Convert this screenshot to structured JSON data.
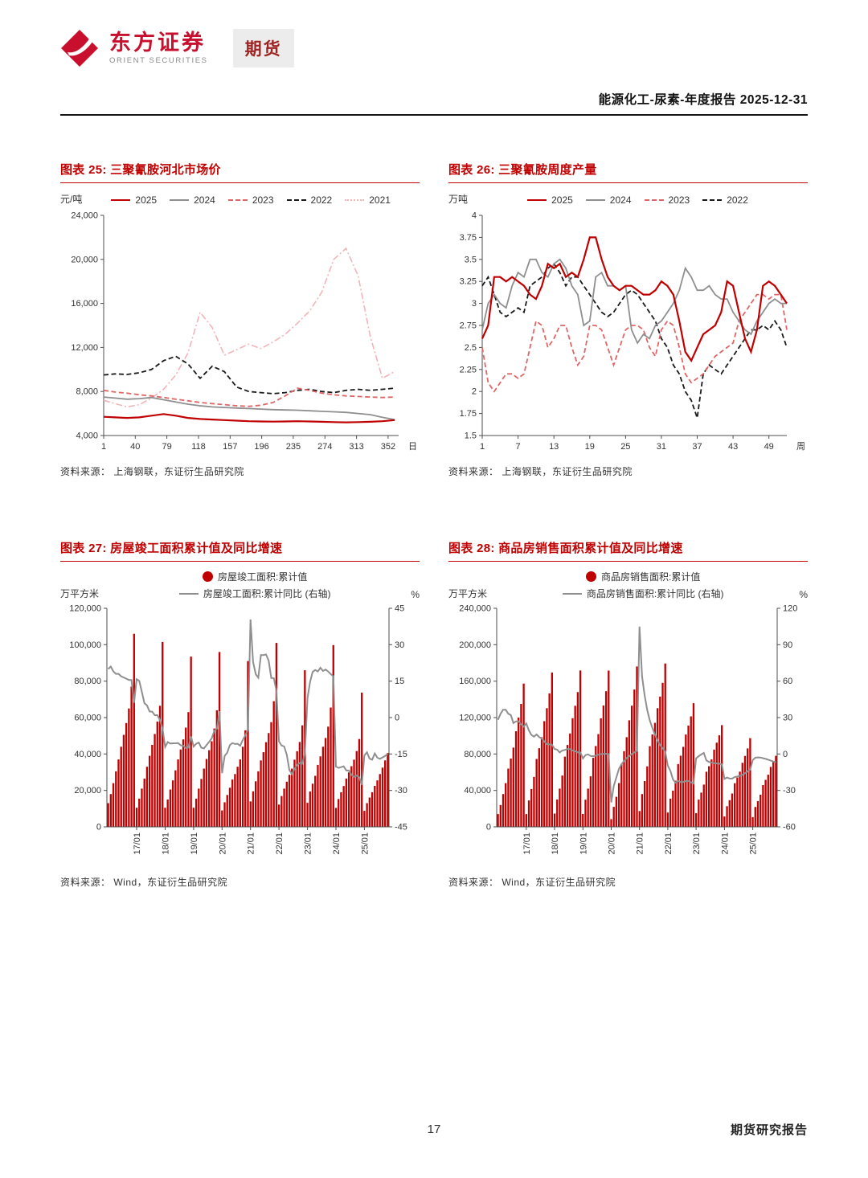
{
  "header": {
    "brand_cn": "东方证券",
    "brand_en": "ORIENT SECURITIES",
    "badge": "期货",
    "report_title": "能源化工-尿素-年度报告 2025-12-31"
  },
  "footer": {
    "page_number": "17",
    "right_text": "期货研究报告"
  },
  "colors": {
    "brand_red": "#c8102e",
    "chart_red": "#c00000",
    "gray": "#8f8f8f",
    "pink": "#e06666",
    "light_pink": "#f2b4b8",
    "black_line": "#1a1a1a"
  },
  "chart_data": [
    {
      "id": "c25",
      "type": "line",
      "title": "图表 25: 三聚氰胺河北市场价",
      "ylabel": "元/吨",
      "xlabel": "日",
      "source": "资料来源： 上海钢联，东证衍生品研究院",
      "xlim": [
        1,
        365
      ],
      "ylim": [
        4000,
        24000
      ],
      "yticks": [
        4000,
        8000,
        12000,
        16000,
        20000,
        24000
      ],
      "xticks": [
        1,
        40,
        79,
        118,
        157,
        196,
        235,
        274,
        313,
        352
      ],
      "margins": {
        "l": 54,
        "r": 26,
        "t": 8,
        "b": 28
      },
      "x": [
        1,
        15,
        30,
        45,
        60,
        75,
        90,
        105,
        120,
        135,
        150,
        165,
        180,
        195,
        210,
        225,
        240,
        255,
        270,
        285,
        300,
        315,
        330,
        345,
        360
      ],
      "series": [
        {
          "name": "2025",
          "color": "#c00000",
          "dash": "solid",
          "width": 2.2,
          "y": [
            5700,
            5650,
            5600,
            5650,
            5800,
            5950,
            5800,
            5600,
            5500,
            5450,
            5400,
            5350,
            5300,
            5280,
            5260,
            5280,
            5300,
            5280,
            5250,
            5220,
            5200,
            5220,
            5250,
            5300,
            5400
          ]
        },
        {
          "name": "2024",
          "color": "#8f8f8f",
          "dash": "solid",
          "width": 1.8,
          "y": [
            7500,
            7400,
            7300,
            7350,
            7450,
            7250,
            7050,
            6850,
            6700,
            6600,
            6550,
            6500,
            6450,
            6400,
            6350,
            6320,
            6300,
            6250,
            6200,
            6150,
            6100,
            6000,
            5900,
            5650,
            5450
          ]
        },
        {
          "name": "2023",
          "color": "#e06666",
          "dash": "dashed",
          "width": 1.8,
          "y": [
            8100,
            7950,
            7850,
            7700,
            7600,
            7450,
            7300,
            7150,
            7000,
            6900,
            6800,
            6700,
            6650,
            6750,
            7000,
            7600,
            8300,
            8100,
            7850,
            7700,
            7600,
            7550,
            7500,
            7450,
            7500
          ]
        },
        {
          "name": "2022",
          "color": "#1a1a1a",
          "dash": "dashed",
          "width": 1.8,
          "y": [
            9500,
            9600,
            9550,
            9700,
            10000,
            10800,
            11200,
            10500,
            9200,
            10300,
            9800,
            8400,
            8000,
            7900,
            7800,
            7900,
            8100,
            8200,
            8000,
            7900,
            8100,
            8200,
            8100,
            8200,
            8300
          ]
        },
        {
          "name": "2021",
          "color": "#f2b4b8",
          "dash": "dashdot",
          "width": 1.6,
          "y": [
            7200,
            6900,
            6600,
            6800,
            7400,
            8200,
            9500,
            11500,
            15200,
            13800,
            11300,
            11800,
            12300,
            11900,
            12500,
            13200,
            14200,
            15300,
            17000,
            20000,
            21000,
            18500,
            13000,
            9200,
            9800
          ]
        }
      ]
    },
    {
      "id": "c26",
      "type": "line",
      "title": "图表 26: 三聚氰胺周度产量",
      "ylabel": "万吨",
      "xlabel": "周",
      "source": "资料来源： 上海钢联，东证衍生品研究院",
      "xlim": [
        1,
        52
      ],
      "ylim": [
        1.5,
        4
      ],
      "yticks": [
        1.5,
        1.75,
        2,
        2.25,
        2.5,
        2.75,
        3,
        3.25,
        3.5,
        3.75,
        4
      ],
      "xticks": [
        1,
        7,
        13,
        19,
        25,
        31,
        37,
        43,
        49
      ],
      "margins": {
        "l": 42,
        "r": 26,
        "t": 8,
        "b": 28
      },
      "series": [
        {
          "name": "2025",
          "color": "#c00000",
          "dash": "solid",
          "width": 2.2,
          "y": [
            2.6,
            2.75,
            3.3,
            3.3,
            3.25,
            3.3,
            3.25,
            3.2,
            3.1,
            3.05,
            3.2,
            3.45,
            3.4,
            3.45,
            3.3,
            3.35,
            3.3,
            3.5,
            3.75,
            3.75,
            3.5,
            3.3,
            3.2,
            3.15,
            3.2,
            3.2,
            3.15,
            3.1,
            3.1,
            3.15,
            3.25,
            3.2,
            3.1,
            2.8,
            2.45,
            2.35,
            2.5,
            2.65,
            2.7,
            2.75,
            2.9,
            3.25,
            3.2,
            2.9,
            2.6,
            2.45,
            2.7,
            3.2,
            3.25,
            3.2,
            3.1,
            3.0
          ]
        },
        {
          "name": "2024",
          "color": "#8f8f8f",
          "dash": "solid",
          "width": 1.8,
          "y": [
            2.7,
            3.0,
            3.1,
            3.0,
            2.95,
            3.2,
            3.35,
            3.3,
            3.5,
            3.5,
            3.35,
            3.3,
            3.45,
            3.5,
            3.4,
            3.2,
            3.1,
            2.75,
            2.8,
            3.3,
            3.35,
            3.2,
            3.2,
            3.15,
            3.2,
            2.7,
            2.55,
            2.65,
            2.6,
            2.75,
            2.8,
            2.9,
            3.0,
            3.15,
            3.4,
            3.3,
            3.15,
            3.15,
            3.2,
            3.1,
            3.05,
            3.05,
            2.9,
            2.8,
            2.7,
            2.65,
            2.8,
            2.9,
            3.0,
            3.05,
            3.0,
            3.0
          ]
        },
        {
          "name": "2023",
          "color": "#e06666",
          "dash": "dashed",
          "width": 1.8,
          "y": [
            2.5,
            2.1,
            2.0,
            2.1,
            2.2,
            2.2,
            2.15,
            2.2,
            2.5,
            2.8,
            2.75,
            2.5,
            2.6,
            2.75,
            2.75,
            2.5,
            2.3,
            2.4,
            2.75,
            2.75,
            2.7,
            2.5,
            2.3,
            2.5,
            2.7,
            2.75,
            2.75,
            2.7,
            2.5,
            2.4,
            2.7,
            2.8,
            2.75,
            2.5,
            2.2,
            2.1,
            2.15,
            2.2,
            2.3,
            2.4,
            2.45,
            2.5,
            2.55,
            2.8,
            2.9,
            3.0,
            3.1,
            3.1,
            3.05,
            3.1,
            3.1,
            2.7
          ]
        },
        {
          "name": "2022",
          "color": "#1a1a1a",
          "dash": "dashed",
          "width": 1.8,
          "y": [
            3.2,
            3.3,
            3.1,
            2.9,
            2.85,
            2.9,
            2.95,
            2.9,
            3.2,
            3.25,
            3.3,
            3.4,
            3.45,
            3.35,
            3.2,
            3.3,
            3.3,
            3.2,
            3.1,
            3.0,
            2.9,
            2.85,
            2.9,
            3.0,
            3.1,
            3.15,
            3.1,
            3.0,
            2.9,
            2.8,
            2.6,
            2.5,
            2.3,
            2.2,
            2.0,
            1.9,
            1.7,
            2.2,
            2.3,
            2.25,
            2.2,
            2.3,
            2.4,
            2.5,
            2.6,
            2.7,
            2.7,
            2.75,
            2.7,
            2.8,
            2.7,
            2.5
          ]
        }
      ]
    },
    {
      "id": "c27",
      "type": "bar+line",
      "title": "图表 27: 房屋竣工面积累计值及同比增速",
      "ylabel_left": "万平方米",
      "ylabel_right": "%",
      "legend_bar": "房屋竣工面积:累计值",
      "legend_line": "房屋竣工面积:累计同比 (右轴)",
      "source": "资料来源： Wind，东证衍生品研究院",
      "bar_color": "#c00000",
      "line_color": "#8f8f8f",
      "ylim_left": [
        0,
        120000
      ],
      "yticks_left": [
        0,
        20000,
        40000,
        60000,
        80000,
        100000,
        120000
      ],
      "ylim_right": [
        -45,
        45
      ],
      "yticks_right": [
        -45,
        -30,
        -15,
        0,
        15,
        30,
        45
      ],
      "margins": {
        "l": 58,
        "r": 38,
        "t": 6,
        "b": 52
      },
      "xtick_labels": [
        "17/01",
        "18/01",
        "19/01",
        "20/01",
        "21/01",
        "22/01",
        "23/01",
        "24/01",
        "25/01"
      ],
      "xtick_indices": [
        11,
        22,
        33,
        44,
        55,
        66,
        77,
        88,
        99
      ],
      "bars": [
        13000,
        18000,
        24000,
        30500,
        37000,
        44000,
        50500,
        57000,
        65000,
        77000,
        106000,
        10500,
        15500,
        21000,
        26500,
        33000,
        39000,
        45000,
        51000,
        57800,
        66500,
        101500,
        10500,
        15000,
        20500,
        25500,
        31000,
        37000,
        42500,
        48000,
        54500,
        63000,
        93500,
        10500,
        15500,
        21000,
        26300,
        32000,
        37300,
        42100,
        47000,
        54000,
        64000,
        96000,
        9000,
        13500,
        17500,
        21500,
        26000,
        29000,
        33000,
        37000,
        44000,
        53000,
        91000,
        14000,
        19500,
        25000,
        30500,
        36500,
        41000,
        46500,
        51500,
        57500,
        69000,
        101000,
        12200,
        16900,
        21000,
        24800,
        28600,
        32000,
        36900,
        41500,
        46600,
        55700,
        86000,
        13200,
        19400,
        23700,
        28000,
        34000,
        38700,
        44000,
        48800,
        55000,
        65500,
        99800,
        10400,
        15300,
        19000,
        22400,
        26500,
        29900,
        33300,
        36900,
        41600,
        48200,
        73700,
        8800,
        13000,
        16100,
        19000,
        22500,
        25500,
        29000,
        32500,
        36500,
        40500
      ],
      "line": [
        20,
        21,
        19,
        18,
        18,
        17,
        16.5,
        16,
        15.5,
        15.5,
        6.1,
        15.8,
        15.1,
        10.6,
        5.9,
        5,
        2.5,
        2.4,
        1,
        1,
        -1,
        -4.4,
        -12.1,
        -10.1,
        -10.7,
        -10.6,
        -10.6,
        -10.5,
        -11.4,
        -11.6,
        -12.5,
        -12.3,
        -7.8,
        -11.9,
        -10.8,
        -10.3,
        -12.4,
        -12.7,
        -11.3,
        -10,
        -8.6,
        -5.5,
        -4.5,
        2.6,
        -22.9,
        -15.8,
        -14.5,
        -11.3,
        -10.5,
        -10.9,
        -10.8,
        -11.6,
        -9.2,
        -7.3,
        -4.9,
        40.4,
        22.9,
        17.9,
        16.4,
        25.7,
        25.7,
        26,
        23.4,
        16.3,
        16.2,
        11.2,
        -9.8,
        -11.5,
        -11.9,
        -15.3,
        -21.5,
        -23.3,
        -21.1,
        -19.6,
        -18.7,
        -19,
        -15,
        8,
        14.7,
        18.8,
        19.6,
        19,
        20.5,
        19.2,
        19.8,
        19,
        17.9,
        17,
        -20.2,
        -20.7,
        -20.4,
        -20.1,
        -21.8,
        -21.8,
        -23.6,
        -24.4,
        -23.9,
        -24.6,
        -27.7,
        -15.6,
        -14.3,
        -16.9,
        -17.3,
        -14.8,
        -16.5,
        -17,
        -16.4,
        -15.8,
        -15
      ]
    },
    {
      "id": "c28",
      "type": "bar+line",
      "title": "图表 28: 商品房销售面积累计值及同比增速",
      "ylabel_left": "万平方米",
      "ylabel_right": "%",
      "legend_bar": "商品房销售面积:累计值",
      "legend_line": "商品房销售面积:累计同比 (右轴)",
      "source": "资料来源： Wind，东证衍生品研究院",
      "bar_color": "#c00000",
      "line_color": "#8f8f8f",
      "ylim_left": [
        0,
        240000
      ],
      "yticks_left": [
        0,
        40000,
        80000,
        120000,
        160000,
        200000,
        240000
      ],
      "ylim_right": [
        -60,
        120
      ],
      "yticks_right": [
        -60,
        -30,
        0,
        30,
        60,
        90,
        120
      ],
      "margins": {
        "l": 60,
        "r": 38,
        "t": 6,
        "b": 52
      },
      "xtick_labels": [
        "17/01",
        "18/01",
        "19/01",
        "20/01",
        "21/01",
        "22/01",
        "23/01",
        "24/01",
        "25/01"
      ],
      "xtick_indices": [
        11,
        22,
        33,
        44,
        55,
        66,
        77,
        88,
        99
      ],
      "bars": [
        14000,
        24000,
        36000,
        48000,
        64000,
        75000,
        87000,
        105000,
        120000,
        135000,
        157300,
        14000,
        29000,
        41600,
        54800,
        74600,
        86300,
        98500,
        116000,
        130300,
        146600,
        169400,
        14600,
        30100,
        42000,
        56400,
        77100,
        89900,
        102500,
        119300,
        133000,
        148000,
        171700,
        14100,
        29800,
        42000,
        55500,
        75800,
        88800,
        101800,
        119200,
        133300,
        148900,
        171600,
        8500,
        22000,
        33000,
        48000,
        69000,
        83000,
        98500,
        117000,
        133100,
        150800,
        176100,
        17400,
        36000,
        50300,
        66400,
        88600,
        101600,
        114200,
        130300,
        143000,
        158100,
        179400,
        15700,
        31000,
        39800,
        50700,
        68900,
        78100,
        87900,
        101400,
        111200,
        121300,
        135800,
        15100,
        29900,
        37600,
        46400,
        60500,
        66600,
        74000,
        84800,
        92500,
        100500,
        111700,
        11400,
        22700,
        29300,
        36600,
        47900,
        54100,
        60600,
        70300,
        77900,
        86100,
        97400,
        10700,
        21900,
        28300,
        35300,
        45900,
        51600,
        57300,
        65800,
        72000,
        78000
      ],
      "line": [
        28.2,
        33.1,
        36.5,
        36.5,
        33.2,
        32.1,
        25.5,
        26.8,
        26.9,
        24.3,
        22.5,
        25.1,
        19.5,
        15.7,
        14.3,
        16.1,
        14,
        12.8,
        10.3,
        8.2,
        7.9,
        7.7,
        4.1,
        3.6,
        1.3,
        2.9,
        3.3,
        4.2,
        4,
        2.9,
        2.2,
        1.4,
        1.3,
        -3.6,
        -0.9,
        -0.3,
        -1.6,
        -1.8,
        -1.3,
        -0.6,
        -0.1,
        0.1,
        0.2,
        -0.1,
        -39.9,
        -26.3,
        -19.3,
        -12.3,
        -8.4,
        -5.8,
        -3.3,
        -1.8,
        0,
        1.3,
        2.6,
        104.9,
        63.8,
        48.1,
        36.3,
        27.7,
        21.5,
        15.9,
        11.3,
        7.3,
        4.8,
        1.9,
        -9.6,
        -13.8,
        -20.9,
        -23.6,
        -22.2,
        -23.1,
        -23,
        -22.2,
        -22.3,
        -23.3,
        -24.3,
        -3.6,
        -1.8,
        -0.4,
        0.9,
        -5.3,
        -6.5,
        -7.1,
        -7.5,
        -7.8,
        -8,
        -8.5,
        -20.5,
        -19.4,
        -20.2,
        -20.3,
        -19,
        -18.6,
        -18,
        -17.1,
        -15.8,
        -14.3,
        -12.9,
        -5.1,
        -3,
        -2.8,
        -2.9,
        -3.5,
        -4,
        -4.7,
        -5.5,
        -6.2,
        -6.8
      ]
    }
  ]
}
